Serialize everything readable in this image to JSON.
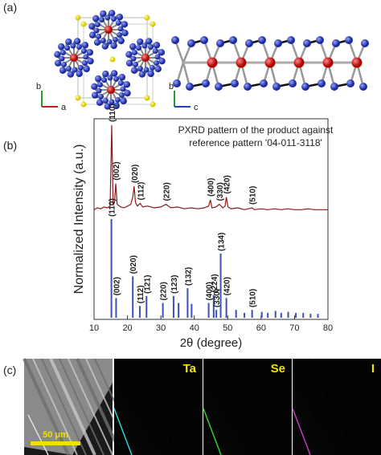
{
  "panel_labels": [
    "(a)",
    "(b)",
    "(c)"
  ],
  "structure": {
    "left_axes": [
      "b",
      "a"
    ],
    "right_axes": [
      "b",
      "c"
    ]
  },
  "chart_data": {
    "type": "pxrd",
    "annotation": [
      "PXRD pattern of the product against",
      "reference pattern '04-011-3118'"
    ],
    "x_label": "2θ (degree)",
    "y_label": "Normalized Intensity (a.u.)",
    "xlim": [
      10,
      80
    ],
    "xticks": [
      10,
      20,
      30,
      40,
      50,
      60,
      70,
      80
    ],
    "ylim": [
      0,
      1
    ],
    "measured": {
      "color": "#8b1a1a",
      "x": [
        10,
        11,
        12,
        13,
        14,
        14.8,
        15.3,
        15.7,
        16.1,
        16.5,
        16.9,
        18,
        19,
        20,
        21,
        21.6,
        22.0,
        22.4,
        23,
        23.8,
        24.5,
        26,
        28,
        30,
        31.5,
        33,
        35,
        37,
        39,
        41,
        43,
        44.3,
        44.8,
        45.3,
        46.5,
        47.5,
        48.5,
        49.2,
        49.6,
        50.1,
        51,
        53,
        55,
        57.3,
        58,
        60,
        62,
        64,
        66,
        68,
        70,
        72,
        74,
        76,
        78,
        80
      ],
      "values": [
        0.06,
        0.08,
        0.07,
        0.09,
        0.08,
        0.1,
        1.0,
        0.12,
        0.14,
        0.35,
        0.12,
        0.09,
        0.08,
        0.1,
        0.12,
        0.2,
        0.32,
        0.14,
        0.1,
        0.13,
        0.09,
        0.1,
        0.08,
        0.09,
        0.12,
        0.08,
        0.09,
        0.07,
        0.08,
        0.07,
        0.08,
        0.1,
        0.17,
        0.08,
        0.09,
        0.12,
        0.08,
        0.1,
        0.2,
        0.09,
        0.07,
        0.08,
        0.06,
        0.08,
        0.06,
        0.07,
        0.06,
        0.07,
        0.06,
        0.07,
        0.06,
        0.06,
        0.07,
        0.06,
        0.06,
        0.06
      ],
      "peaks": {
        "x": [
          15.3,
          16.5,
          22.0,
          23.8,
          31.5,
          44.8,
          47.5,
          49.6,
          57.3
        ],
        "labels": [
          "(110)",
          "(002)",
          "(020)",
          "(112)",
          "(220)",
          "(400)",
          "(330)",
          "(420)",
          "(510)"
        ]
      }
    },
    "reference": {
      "color": "#3a4fc0",
      "x": [
        15.2,
        16.6,
        21.6,
        23.7,
        25.7,
        30.6,
        33.8,
        35.3,
        38.0,
        39.2,
        44.3,
        45.8,
        46.6,
        47.9,
        49.6,
        52.5,
        55.0,
        57.3,
        60.2,
        62.0,
        64.3,
        66.0,
        68.1,
        70.4,
        72.6,
        74.8,
        77.0
      ],
      "values": [
        1.0,
        0.2,
        0.42,
        0.12,
        0.22,
        0.15,
        0.22,
        0.15,
        0.3,
        0.14,
        0.15,
        0.23,
        0.08,
        0.65,
        0.2,
        0.08,
        0.05,
        0.08,
        0.06,
        0.05,
        0.07,
        0.05,
        0.06,
        0.05,
        0.05,
        0.04,
        0.04
      ],
      "labels": [
        "(110)",
        "(002)",
        "(020)",
        "(112)",
        "(121)",
        "(220)",
        "(123)",
        null,
        "(132)",
        null,
        "(400)",
        "(224)",
        "(330)",
        "(134)",
        "(420)",
        null,
        null,
        "(510)",
        null,
        null,
        null,
        null,
        null,
        null,
        null,
        null,
        null
      ]
    }
  },
  "eds": {
    "scale_bar": "50 μm",
    "maps": [
      {
        "label": "Ta",
        "color": "#2ad4d4"
      },
      {
        "label": "Se",
        "color": "#2fd02f"
      },
      {
        "label": "I",
        "color": "#c03cc0"
      }
    ]
  }
}
